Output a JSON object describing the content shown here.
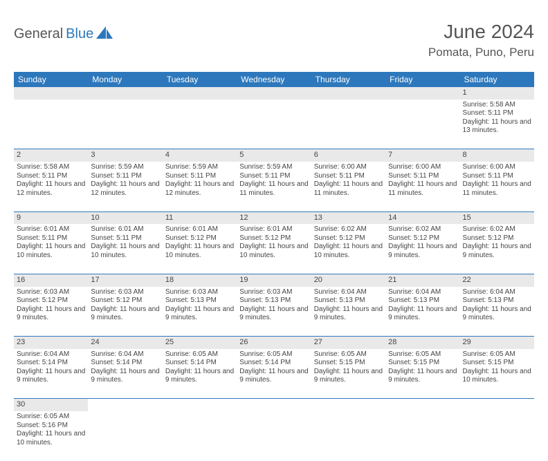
{
  "logo": {
    "text1": "General",
    "text2": "Blue"
  },
  "title": "June 2024",
  "location": "Pomata, Puno, Peru",
  "colors": {
    "header_bg": "#2d78bc",
    "header_fg": "#ffffff",
    "numrow_bg": "#e9e9e9",
    "row_border": "#2d78bc",
    "text": "#444444",
    "logo_blue": "#2d78bc",
    "logo_gray": "#555555"
  },
  "weekdays": [
    "Sunday",
    "Monday",
    "Tuesday",
    "Wednesday",
    "Thursday",
    "Friday",
    "Saturday"
  ],
  "weeks": [
    [
      null,
      null,
      null,
      null,
      null,
      null,
      {
        "d": "1",
        "sr": "5:58 AM",
        "ss": "5:11 PM",
        "dl": "11 hours and 13 minutes."
      }
    ],
    [
      {
        "d": "2",
        "sr": "5:58 AM",
        "ss": "5:11 PM",
        "dl": "11 hours and 12 minutes."
      },
      {
        "d": "3",
        "sr": "5:59 AM",
        "ss": "5:11 PM",
        "dl": "11 hours and 12 minutes."
      },
      {
        "d": "4",
        "sr": "5:59 AM",
        "ss": "5:11 PM",
        "dl": "11 hours and 12 minutes."
      },
      {
        "d": "5",
        "sr": "5:59 AM",
        "ss": "5:11 PM",
        "dl": "11 hours and 11 minutes."
      },
      {
        "d": "6",
        "sr": "6:00 AM",
        "ss": "5:11 PM",
        "dl": "11 hours and 11 minutes."
      },
      {
        "d": "7",
        "sr": "6:00 AM",
        "ss": "5:11 PM",
        "dl": "11 hours and 11 minutes."
      },
      {
        "d": "8",
        "sr": "6:00 AM",
        "ss": "5:11 PM",
        "dl": "11 hours and 11 minutes."
      }
    ],
    [
      {
        "d": "9",
        "sr": "6:01 AM",
        "ss": "5:11 PM",
        "dl": "11 hours and 10 minutes."
      },
      {
        "d": "10",
        "sr": "6:01 AM",
        "ss": "5:11 PM",
        "dl": "11 hours and 10 minutes."
      },
      {
        "d": "11",
        "sr": "6:01 AM",
        "ss": "5:12 PM",
        "dl": "11 hours and 10 minutes."
      },
      {
        "d": "12",
        "sr": "6:01 AM",
        "ss": "5:12 PM",
        "dl": "11 hours and 10 minutes."
      },
      {
        "d": "13",
        "sr": "6:02 AM",
        "ss": "5:12 PM",
        "dl": "11 hours and 10 minutes."
      },
      {
        "d": "14",
        "sr": "6:02 AM",
        "ss": "5:12 PM",
        "dl": "11 hours and 9 minutes."
      },
      {
        "d": "15",
        "sr": "6:02 AM",
        "ss": "5:12 PM",
        "dl": "11 hours and 9 minutes."
      }
    ],
    [
      {
        "d": "16",
        "sr": "6:03 AM",
        "ss": "5:12 PM",
        "dl": "11 hours and 9 minutes."
      },
      {
        "d": "17",
        "sr": "6:03 AM",
        "ss": "5:12 PM",
        "dl": "11 hours and 9 minutes."
      },
      {
        "d": "18",
        "sr": "6:03 AM",
        "ss": "5:13 PM",
        "dl": "11 hours and 9 minutes."
      },
      {
        "d": "19",
        "sr": "6:03 AM",
        "ss": "5:13 PM",
        "dl": "11 hours and 9 minutes."
      },
      {
        "d": "20",
        "sr": "6:04 AM",
        "ss": "5:13 PM",
        "dl": "11 hours and 9 minutes."
      },
      {
        "d": "21",
        "sr": "6:04 AM",
        "ss": "5:13 PM",
        "dl": "11 hours and 9 minutes."
      },
      {
        "d": "22",
        "sr": "6:04 AM",
        "ss": "5:13 PM",
        "dl": "11 hours and 9 minutes."
      }
    ],
    [
      {
        "d": "23",
        "sr": "6:04 AM",
        "ss": "5:14 PM",
        "dl": "11 hours and 9 minutes."
      },
      {
        "d": "24",
        "sr": "6:04 AM",
        "ss": "5:14 PM",
        "dl": "11 hours and 9 minutes."
      },
      {
        "d": "25",
        "sr": "6:05 AM",
        "ss": "5:14 PM",
        "dl": "11 hours and 9 minutes."
      },
      {
        "d": "26",
        "sr": "6:05 AM",
        "ss": "5:14 PM",
        "dl": "11 hours and 9 minutes."
      },
      {
        "d": "27",
        "sr": "6:05 AM",
        "ss": "5:15 PM",
        "dl": "11 hours and 9 minutes."
      },
      {
        "d": "28",
        "sr": "6:05 AM",
        "ss": "5:15 PM",
        "dl": "11 hours and 9 minutes."
      },
      {
        "d": "29",
        "sr": "6:05 AM",
        "ss": "5:15 PM",
        "dl": "11 hours and 10 minutes."
      }
    ],
    [
      {
        "d": "30",
        "sr": "6:05 AM",
        "ss": "5:16 PM",
        "dl": "11 hours and 10 minutes."
      },
      null,
      null,
      null,
      null,
      null,
      null
    ]
  ],
  "labels": {
    "sunrise": "Sunrise:",
    "sunset": "Sunset:",
    "daylight": "Daylight:"
  }
}
